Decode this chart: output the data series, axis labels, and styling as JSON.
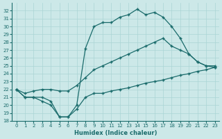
{
  "xlabel": "Humidex (Indice chaleur)",
  "xlim": [
    -0.5,
    23.5
  ],
  "ylim": [
    18,
    33
  ],
  "yticks": [
    18,
    19,
    20,
    21,
    22,
    23,
    24,
    25,
    26,
    27,
    28,
    29,
    30,
    31,
    32
  ],
  "xticks": [
    0,
    1,
    2,
    3,
    4,
    5,
    6,
    7,
    8,
    9,
    10,
    11,
    12,
    13,
    14,
    15,
    16,
    17,
    18,
    19,
    20,
    21,
    22,
    23
  ],
  "background_color": "#cce8e8",
  "grid_color": "#aad4d4",
  "line_color": "#1a6b6b",
  "curve_top_x": [
    0,
    1,
    2,
    3,
    4,
    5,
    6,
    7,
    8,
    9,
    10,
    11,
    12,
    13,
    14,
    15,
    16,
    17,
    18,
    19,
    20,
    21,
    22,
    23
  ],
  "curve_top_y": [
    22.0,
    21.0,
    21.0,
    21.0,
    20.5,
    18.5,
    18.5,
    20.0,
    27.2,
    30.0,
    30.5,
    30.5,
    31.2,
    31.5,
    32.2,
    31.5,
    31.8,
    31.2,
    30.0,
    28.5,
    26.5,
    25.5,
    25.0,
    25.0
  ],
  "curve_bot_x": [
    0,
    1,
    2,
    3,
    4,
    5,
    6,
    7,
    8,
    9,
    10,
    11,
    12,
    13,
    14,
    15,
    16,
    17,
    18,
    19,
    20,
    21,
    22,
    23
  ],
  "curve_bot_y": [
    22.0,
    21.0,
    21.0,
    20.5,
    20.0,
    18.5,
    18.5,
    19.5,
    21.0,
    21.5,
    21.5,
    21.8,
    22.0,
    22.2,
    22.5,
    22.8,
    23.0,
    23.2,
    23.5,
    23.8,
    24.0,
    24.3,
    24.5,
    24.8
  ],
  "curve_mid_x": [
    0,
    1,
    2,
    3,
    4,
    5,
    6,
    7,
    8,
    9,
    10,
    11,
    12,
    13,
    14,
    15,
    16,
    17,
    18,
    19,
    20,
    21,
    22,
    23
  ],
  "curve_mid_y": [
    22.0,
    21.5,
    21.8,
    22.0,
    22.0,
    21.8,
    21.8,
    22.5,
    23.5,
    24.5,
    25.0,
    25.5,
    26.0,
    26.5,
    27.0,
    27.5,
    28.0,
    28.5,
    27.5,
    27.0,
    26.5,
    25.5,
    25.0,
    24.8
  ]
}
